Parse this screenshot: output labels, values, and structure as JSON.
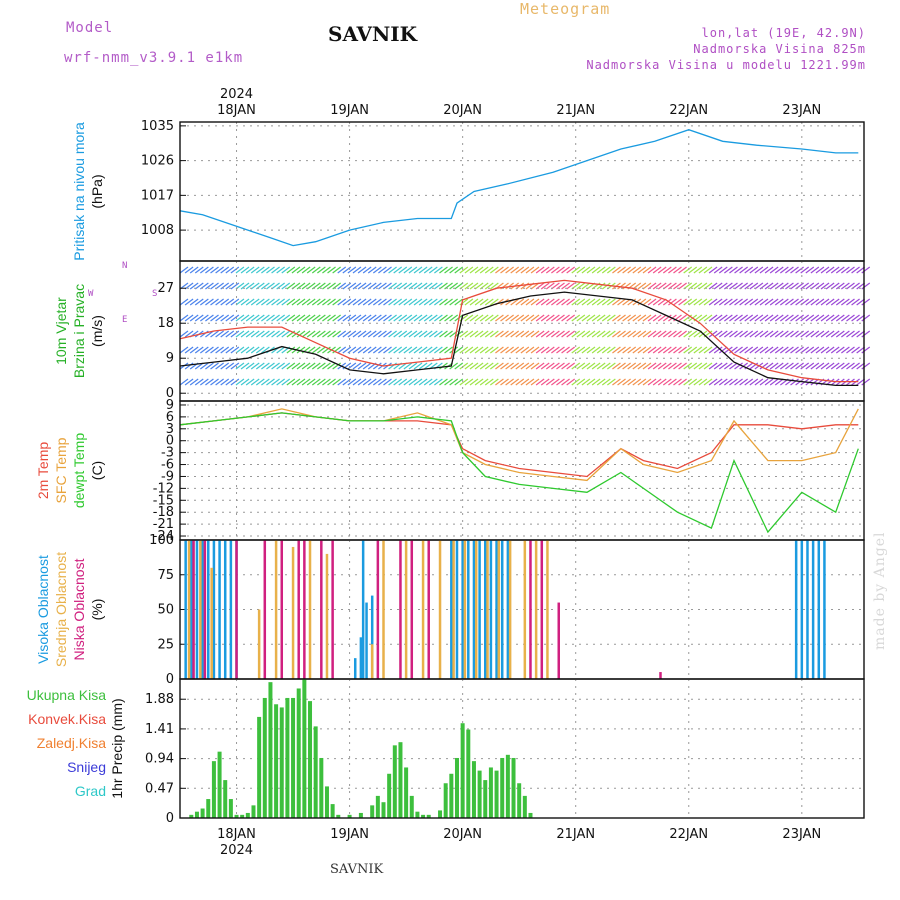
{
  "header": {
    "model_label": "Model",
    "model_name": "wrf-nmm_v3.9.1  e1km",
    "station": "SAVNIK",
    "product": "Meteogram",
    "lonlat": "lon,lat (19E, 42.9N)",
    "elevation": "Nadmorska Visina 825m",
    "model_elevation": "Nadmorska Visina u modelu 1221.99m"
  },
  "footer": {
    "station": "SAVNIK",
    "watermark": "made by Angel"
  },
  "colors": {
    "pressure": "#1a9be0",
    "temp2m": "#e84b3c",
    "sfc": "#e8a33c",
    "dew": "#2ec92e",
    "high": "#1a9be0",
    "mid": "#e8b14a",
    "low": "#d0207f",
    "total": "#3dbf3d"
  },
  "chart_data": [
    {
      "type": "line",
      "panel": "pressure",
      "ylabel": [
        "Pritisak na nivou mora",
        "(hPa)"
      ],
      "yticks": [
        1008,
        1017,
        1026,
        1035
      ],
      "ylim": [
        1000,
        1036
      ],
      "x_ticks": [
        "18JAN",
        "19JAN",
        "20JAN",
        "21JAN",
        "22JAN",
        "23JAN"
      ],
      "top_year": "2024",
      "series": [
        {
          "x": [
            -0.5,
            -0.3,
            0,
            0.3,
            0.5,
            0.7,
            1,
            1.3,
            1.6,
            1.9,
            1.95,
            2.1,
            2.4,
            2.8,
            3.1,
            3.4,
            3.7,
            4.0,
            4.3,
            4.6,
            5.0,
            5.3,
            5.5
          ],
          "y": [
            1013,
            1012,
            1009,
            1006,
            1004,
            1005,
            1008,
            1010,
            1011,
            1011,
            1015,
            1018,
            1020,
            1023,
            1026,
            1029,
            1031,
            1034,
            1031,
            1030,
            1029,
            1028,
            1028
          ]
        }
      ]
    },
    {
      "type": "line",
      "panel": "wind",
      "ylabel": [
        "10m Vjetar",
        "Brzina i Pravac",
        "(m/s)"
      ],
      "compass": {
        "n": "N",
        "e": "E",
        "w": "W",
        "s": "S"
      },
      "yticks": [
        0,
        9,
        18,
        27
      ],
      "ylim": [
        -2,
        34
      ],
      "series": [
        {
          "name": "speed",
          "x": [
            -0.5,
            -0.2,
            0.1,
            0.4,
            0.7,
            1.0,
            1.3,
            1.6,
            1.9,
            2.0,
            2.3,
            2.6,
            2.9,
            3.2,
            3.5,
            3.8,
            4.1,
            4.4,
            4.7,
            5.0,
            5.3,
            5.5
          ],
          "y": [
            7,
            8,
            9,
            12,
            10,
            6,
            5,
            6,
            7,
            20,
            23,
            25,
            26,
            25,
            24,
            20,
            16,
            8,
            4,
            3,
            2,
            2
          ]
        },
        {
          "name": "gust",
          "x": [
            -0.5,
            -0.2,
            0.1,
            0.4,
            0.7,
            1.0,
            1.3,
            1.6,
            1.9,
            2.0,
            2.3,
            2.6,
            2.9,
            3.2,
            3.5,
            3.8,
            4.1,
            4.4,
            4.7,
            5.0,
            5.3,
            5.5
          ],
          "y": [
            14,
            16,
            17,
            17,
            13,
            9,
            7,
            8,
            9,
            24,
            27,
            28,
            29,
            28,
            27,
            24,
            18,
            10,
            6,
            4,
            3,
            3
          ]
        }
      ]
    },
    {
      "type": "line",
      "panel": "temperature",
      "ylabel": [
        "2m Temp",
        "SFC Temp",
        "dewpt Temp",
        "(C)"
      ],
      "yticks": [
        9,
        6,
        3,
        0,
        -3,
        -6,
        -9,
        -12,
        -15,
        -18,
        -21,
        -24
      ],
      "ylim": [
        -25,
        10
      ],
      "series": [
        {
          "name": "2m Temp",
          "x": [
            -0.5,
            -0.2,
            0.1,
            0.4,
            0.7,
            1.0,
            1.3,
            1.6,
            1.9,
            2.0,
            2.2,
            2.5,
            2.8,
            3.1,
            3.4,
            3.6,
            3.9,
            4.2,
            4.4,
            4.7,
            5.0,
            5.3,
            5.5
          ],
          "y": [
            4,
            5,
            6,
            7,
            6,
            5,
            5,
            5,
            4,
            -2,
            -5,
            -7,
            -8,
            -9,
            -2,
            -5,
            -7,
            -3,
            4,
            4,
            3,
            4,
            4
          ]
        },
        {
          "name": "SFC Temp",
          "x": [
            -0.5,
            -0.2,
            0.1,
            0.4,
            0.7,
            1.0,
            1.3,
            1.6,
            1.9,
            2.0,
            2.2,
            2.5,
            2.8,
            3.1,
            3.4,
            3.6,
            3.9,
            4.2,
            4.4,
            4.7,
            5.0,
            5.3,
            5.5
          ],
          "y": [
            4,
            5,
            6,
            8,
            6,
            5,
            5,
            7,
            4,
            -3,
            -6,
            -8,
            -9,
            -10,
            -2,
            -6,
            -8,
            -5,
            5,
            -5,
            -5,
            -3,
            8
          ]
        },
        {
          "name": "dewpt Temp",
          "x": [
            -0.5,
            -0.2,
            0.1,
            0.4,
            0.7,
            1.0,
            1.3,
            1.6,
            1.9,
            2.0,
            2.2,
            2.5,
            2.8,
            3.1,
            3.4,
            3.6,
            3.9,
            4.2,
            4.4,
            4.7,
            5.0,
            5.3,
            5.5
          ],
          "y": [
            4,
            5,
            6,
            7,
            6,
            5,
            5,
            6,
            5,
            -3,
            -9,
            -11,
            -12,
            -13,
            -8,
            -12,
            -18,
            -22,
            -5,
            -23,
            -13,
            -18,
            -2
          ]
        }
      ]
    },
    {
      "type": "bar",
      "panel": "cloud",
      "ylabel": [
        "Visoka Oblacnost",
        "Srednja Oblacnost",
        "Niska Oblacnost",
        "(%)"
      ],
      "yticks": [
        0,
        25,
        50,
        75,
        100
      ],
      "ylim": [
        0,
        100
      ],
      "series": [
        {
          "name": "Visoka Oblacnost",
          "x": [
            -0.45,
            -0.4,
            -0.35,
            -0.3,
            -0.25,
            -0.2,
            -0.15,
            -0.1,
            -0.05,
            0,
            1.05,
            1.1,
            1.12,
            1.15,
            1.2,
            1.9,
            1.95,
            2.0,
            2.05,
            2.1,
            2.15,
            2.2,
            2.25,
            2.3,
            2.35,
            2.4,
            4.95,
            5.0,
            5.05,
            5.1,
            5.15,
            5.2
          ],
          "values": [
            100,
            100,
            100,
            100,
            100,
            100,
            100,
            100,
            100,
            100,
            15,
            30,
            100,
            55,
            60,
            100,
            100,
            100,
            100,
            100,
            100,
            100,
            100,
            100,
            100,
            100,
            100,
            100,
            100,
            100,
            100,
            100
          ]
        },
        {
          "name": "Srednja Oblacnost",
          "x": [
            -0.42,
            -0.32,
            -0.22,
            0.2,
            0.35,
            0.5,
            0.65,
            0.8,
            1.2,
            1.3,
            1.5,
            1.65,
            1.8,
            1.92,
            2.02,
            2.12,
            2.22,
            2.32,
            2.42,
            2.55,
            2.65,
            2.75
          ],
          "values": [
            100,
            100,
            80,
            50,
            100,
            95,
            100,
            90,
            25,
            100,
            100,
            100,
            100,
            100,
            100,
            100,
            100,
            100,
            100,
            100,
            100,
            100
          ]
        },
        {
          "name": "Niska Oblacnost",
          "x": [
            -0.38,
            -0.28,
            0.0,
            0.25,
            0.4,
            0.55,
            0.6,
            0.75,
            0.85,
            1.25,
            1.45,
            1.55,
            1.7,
            2.6,
            2.7,
            2.85,
            3.75
          ],
          "values": [
            100,
            100,
            100,
            100,
            100,
            100,
            100,
            100,
            100,
            100,
            100,
            100,
            100,
            100,
            100,
            55,
            5
          ]
        }
      ]
    },
    {
      "type": "bar",
      "panel": "precip",
      "ylabel": [
        "1hr Precip (mm)"
      ],
      "legend": [
        "Ukupna Kisa",
        "Konvek.Kisa",
        "Zaledj.Kisa",
        "Snijeg",
        "Grad"
      ],
      "yticks": [
        0,
        0.47,
        0.94,
        1.41,
        1.88
      ],
      "ylim": [
        0,
        2.2
      ],
      "x_ticks": [
        "18JAN",
        "19JAN",
        "20JAN",
        "21JAN",
        "22JAN",
        "23JAN"
      ],
      "bottom_year": "2024",
      "series": [
        {
          "name": "Ukupna Kisa",
          "x": [
            -0.4,
            -0.35,
            -0.3,
            -0.25,
            -0.2,
            -0.15,
            -0.1,
            -0.05,
            0.0,
            0.05,
            0.1,
            0.15,
            0.2,
            0.25,
            0.3,
            0.35,
            0.4,
            0.45,
            0.5,
            0.55,
            0.6,
            0.65,
            0.7,
            0.75,
            0.8,
            0.85,
            0.9,
            1.0,
            1.1,
            1.2,
            1.25,
            1.3,
            1.35,
            1.4,
            1.45,
            1.5,
            1.55,
            1.6,
            1.65,
            1.7,
            1.8,
            1.85,
            1.9,
            1.95,
            2.0,
            2.05,
            2.1,
            2.15,
            2.2,
            2.25,
            2.3,
            2.35,
            2.4,
            2.45,
            2.5,
            2.55,
            2.6
          ],
          "values": [
            0.05,
            0.1,
            0.15,
            0.3,
            0.9,
            1.05,
            0.6,
            0.3,
            0.05,
            0.05,
            0.08,
            0.2,
            1.6,
            1.9,
            2.15,
            1.8,
            1.75,
            1.9,
            1.9,
            2.05,
            2.2,
            1.85,
            1.45,
            0.95,
            0.5,
            0.22,
            0.05,
            0.05,
            0.08,
            0.2,
            0.35,
            0.25,
            0.7,
            1.15,
            1.2,
            0.8,
            0.35,
            0.1,
            0.05,
            0.05,
            0.12,
            0.55,
            0.7,
            0.95,
            1.5,
            1.4,
            0.9,
            0.75,
            0.6,
            0.8,
            0.75,
            0.95,
            1.0,
            0.95,
            0.55,
            0.35,
            0.08
          ]
        }
      ]
    }
  ]
}
